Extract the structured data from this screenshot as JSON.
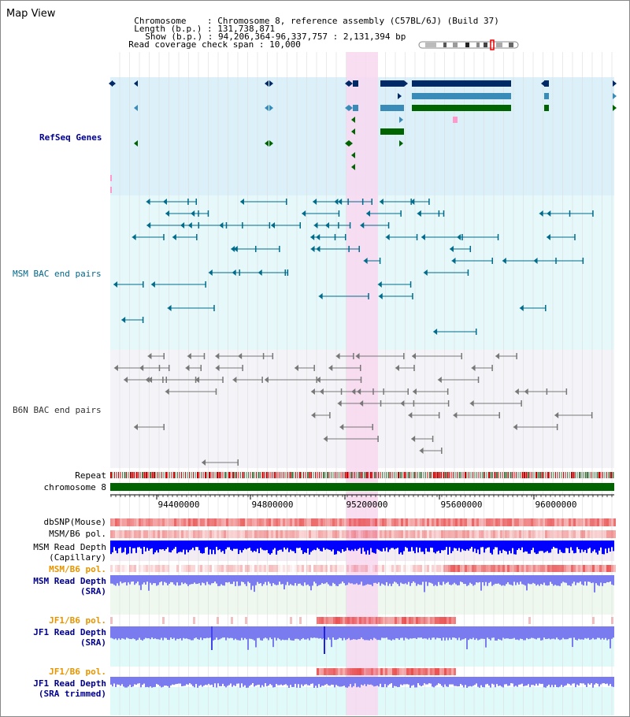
{
  "title": "Map View",
  "info": {
    "chromosome_label": "Chromosome",
    "chromosome_value": "Chromosome 8, reference assembly (C57BL/6J) (Build 37)",
    "length_label": "Length (b.p.)",
    "length_value": "131,738,871",
    "show_label": "Show (b.p.)",
    "show_value": "94,206,364-96,337,757 : 2,131,394 bp",
    "coverage_label": "Read coverage check span",
    "coverage_value": "10,000"
  },
  "tracks": {
    "refseq": "RefSeq Genes",
    "msm_bac": "MSM BAC end pairs",
    "b6n_bac": "B6N BAC end pairs",
    "repeat": "Repeat",
    "chromosome": "chromosome 8",
    "dbsnp": "dbSNP(Mouse)",
    "msm_pol": "MSM/B6 pol.",
    "msm_depth_cap_1": "MSM Read Depth",
    "msm_depth_cap_2": "(Capillary)",
    "msm_pol2": "MSM/B6 pol.",
    "msm_depth_sra_1": "MSM Read Depth",
    "msm_depth_sra_2": "(SRA)",
    "jf1_pol": "JF1/B6 pol.",
    "jf1_depth_1": "JF1 Read Depth",
    "jf1_depth_2": "(SRA)",
    "jf1_pol2": "JF1/B6 pol.",
    "jf1_trim_1": "JF1 Read Depth",
    "jf1_trim_2": "(SRA trimmed)"
  },
  "axis_ticks": [
    "94400000",
    "94800000",
    "95200000",
    "95600000",
    "96000000"
  ],
  "colors": {
    "refseq_bg": "#dcf0fa",
    "msm_bg": "#e6f8fa",
    "b6n_bg": "#f4f4f8",
    "highlight": "#f8d8f0",
    "gene_dark": "#002a66",
    "gene_mid": "#3a8cb8",
    "gene_green": "#006400",
    "bac_teal": "#006b8b",
    "bac_gray": "#777777",
    "depth_blue": "#0000ff",
    "depth_lav": "#7b7bf0",
    "pol_red": "#f07070",
    "chrom_green": "#006400"
  }
}
